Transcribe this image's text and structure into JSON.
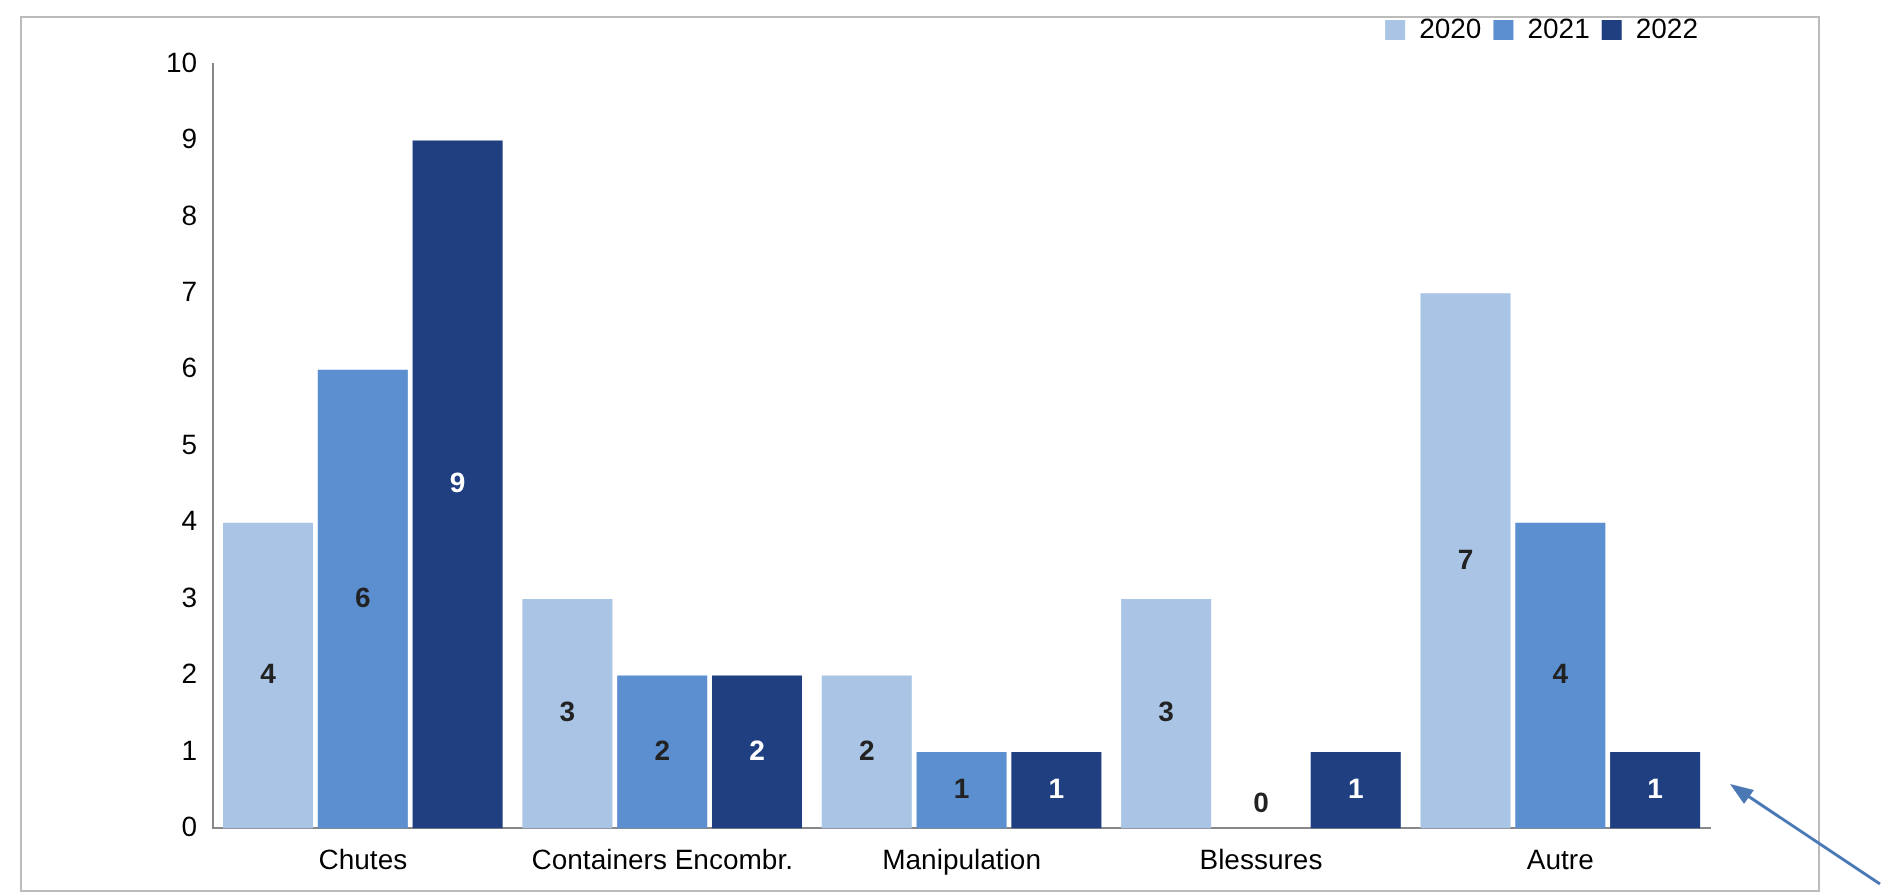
{
  "chart_data": {
    "type": "bar",
    "categories": [
      "Chutes",
      "Containers Encombr.",
      "Manipulation",
      "Blessures",
      "Autre"
    ],
    "series": [
      {
        "name": "2020",
        "color": "#a9c4e4",
        "values": [
          4,
          3,
          2,
          3,
          7
        ]
      },
      {
        "name": "2021",
        "color": "#5b8fd0",
        "values": [
          6,
          2,
          1,
          0,
          4
        ]
      },
      {
        "name": "2022",
        "color": "#1f3f80",
        "values": [
          9,
          2,
          1,
          1,
          1
        ]
      }
    ],
    "ylim": [
      0,
      10
    ],
    "yticks": [
      0,
      1,
      2,
      3,
      4,
      5,
      6,
      7,
      8,
      9,
      10
    ],
    "grid": false,
    "legend": "top right",
    "data_labels": true
  }
}
